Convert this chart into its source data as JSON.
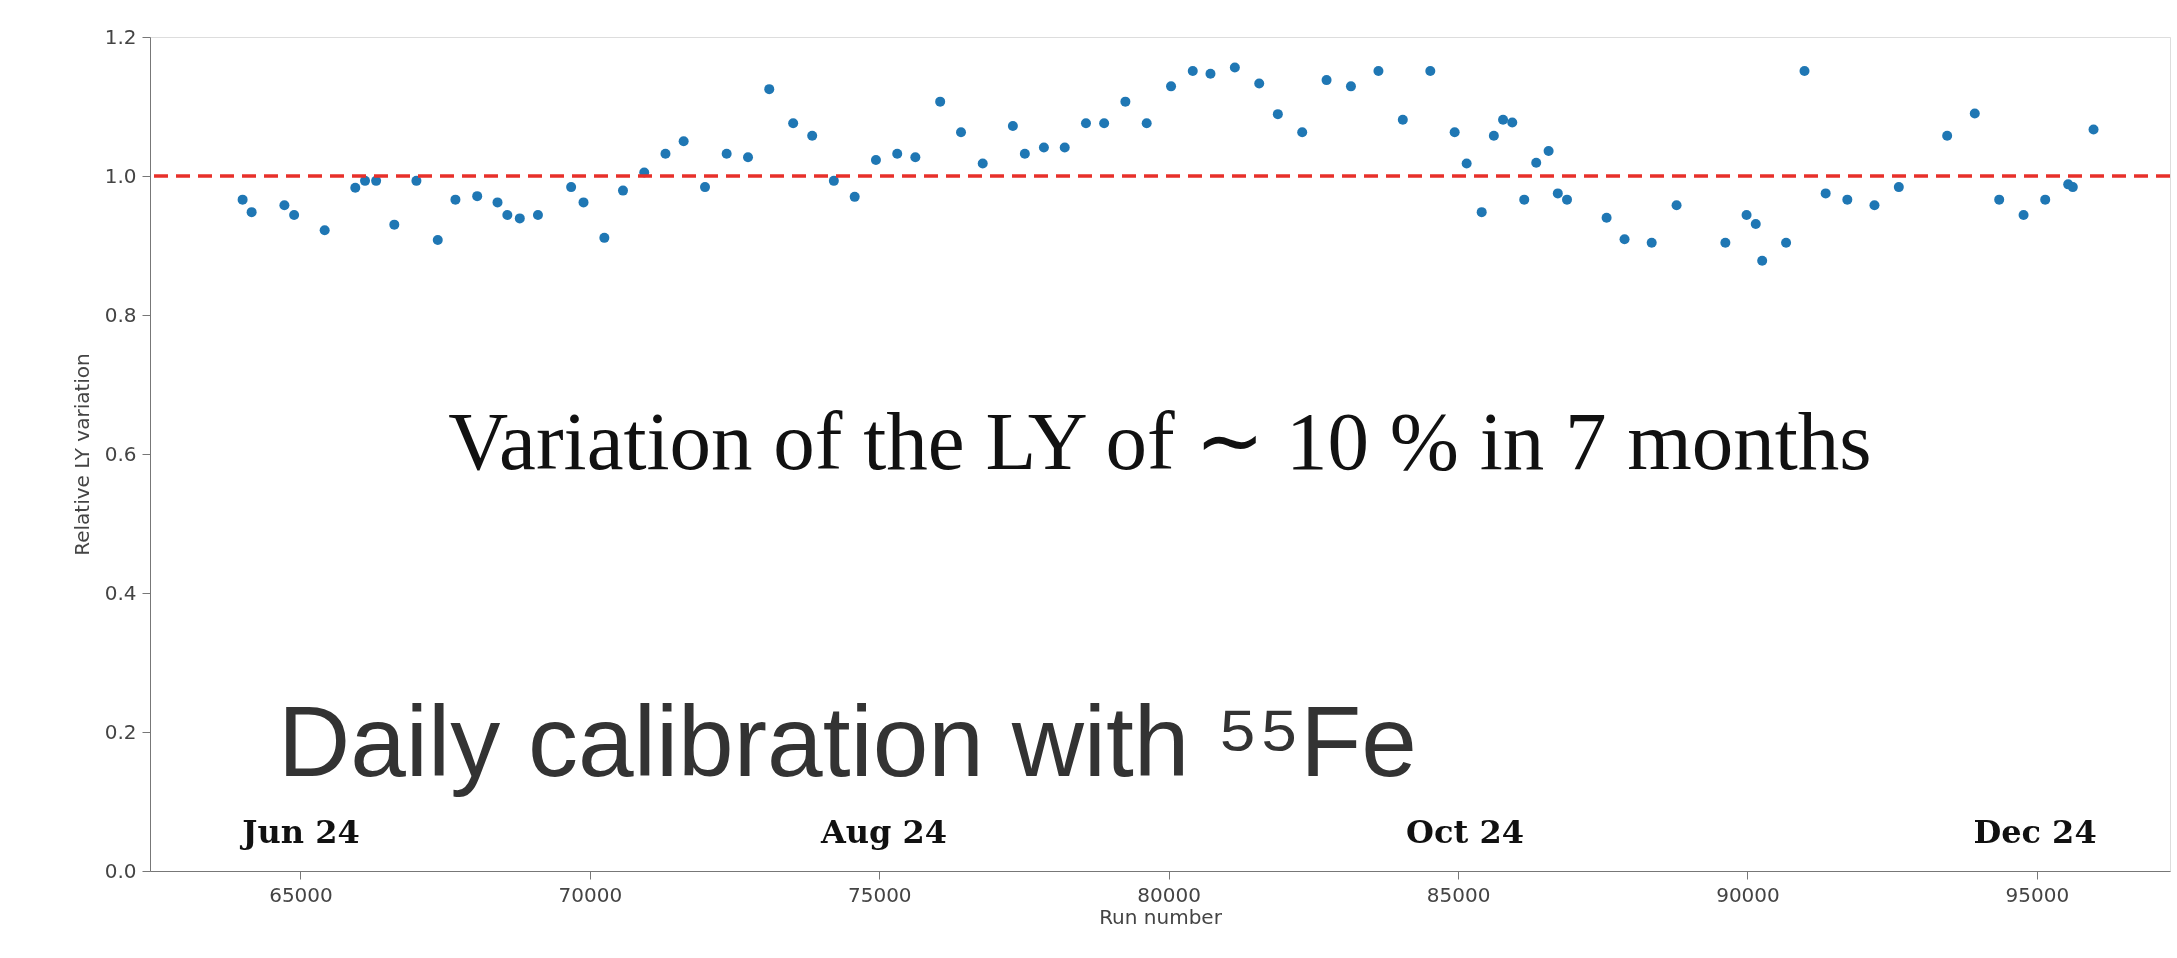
{
  "chart_data": {
    "type": "scatter",
    "xlabel": "Run number",
    "ylabel": "Relative LY variation",
    "x": [
      64000,
      64156,
      64722,
      64890,
      65418,
      65947,
      66115,
      66307,
      66621,
      67003,
      67372,
      67677,
      68053,
      68404,
      68574,
      68789,
      69103,
      69676,
      69890,
      70250,
      70572,
      70939,
      71306,
      71620,
      71989,
      72363,
      72732,
      73099,
      73512,
      73841,
      74215,
      74575,
      74942,
      75310,
      75623,
      76052,
      76412,
      76787,
      77308,
      77515,
      77844,
      78204,
      78571,
      78885,
      79252,
      79620,
      80041,
      80416,
      80722,
      81143,
      81564,
      81886,
      82307,
      82728,
      83149,
      83624,
      84045,
      84520,
      84941,
      85148,
      85408,
      85618,
      85777,
      85936,
      86143,
      86350,
      86564,
      86723,
      86882,
      87566,
      87876,
      88345,
      88775,
      89618,
      89984,
      90143,
      90254,
      90667,
      90985,
      91351,
      91725,
      92194,
      92615,
      93450,
      93927,
      94349,
      94770,
      95144,
      95541,
      95621,
      95979
    ],
    "series": [
      {
        "color": "#1f77b4",
        "values": [
          0.966,
          0.948,
          0.958,
          0.944,
          0.922,
          0.983,
          0.993,
          0.993,
          0.93,
          0.993,
          0.908,
          0.966,
          0.971,
          0.962,
          0.944,
          0.939,
          0.944,
          0.984,
          0.962,
          0.911,
          0.979,
          1.005,
          1.032,
          1.05,
          0.984,
          1.032,
          1.027,
          1.125,
          1.076,
          1.058,
          0.993,
          0.97,
          1.023,
          1.032,
          1.027,
          1.107,
          1.063,
          1.018,
          1.072,
          1.032,
          1.041,
          1.041,
          1.076,
          1.076,
          1.107,
          1.076,
          1.129,
          1.151,
          1.147,
          1.156,
          1.133,
          1.089,
          1.063,
          1.138,
          1.129,
          1.151,
          1.081,
          1.151,
          1.063,
          1.018,
          0.948,
          1.058,
          1.081,
          1.077,
          0.966,
          1.019,
          1.036,
          0.975,
          0.966,
          0.94,
          0.909,
          0.904,
          0.958,
          0.904,
          0.944,
          0.931,
          0.878,
          0.904,
          1.151,
          0.975,
          0.966,
          0.958,
          0.984,
          1.058,
          1.09,
          0.966,
          0.944,
          0.966,
          0.988,
          0.984,
          1.067
        ]
      }
    ],
    "marker": "circle",
    "xlim": [
      62400,
      97300
    ],
    "ylim": [
      0,
      1.2
    ],
    "xticks": [
      65000,
      70000,
      75000,
      80000,
      85000,
      90000,
      95000
    ],
    "yticks": [
      {
        "value": 0,
        "label": "0.0"
      },
      0.2,
      0.4,
      0.6,
      0.8,
      {
        "value": 1,
        "label": "1.0"
      },
      1.2
    ],
    "grid": false,
    "ref_lines": [
      {
        "axis": "y",
        "value": 1,
        "color": "#e8302a",
        "line_style": "dashed"
      }
    ],
    "annotations": [
      "Variation of the LY of  ∼ 10 % in 7 months",
      "Daily calibration with ⁵⁵Fe",
      "Jun 24",
      "Aug 24",
      "Oct 24",
      "Dec 24"
    ]
  }
}
